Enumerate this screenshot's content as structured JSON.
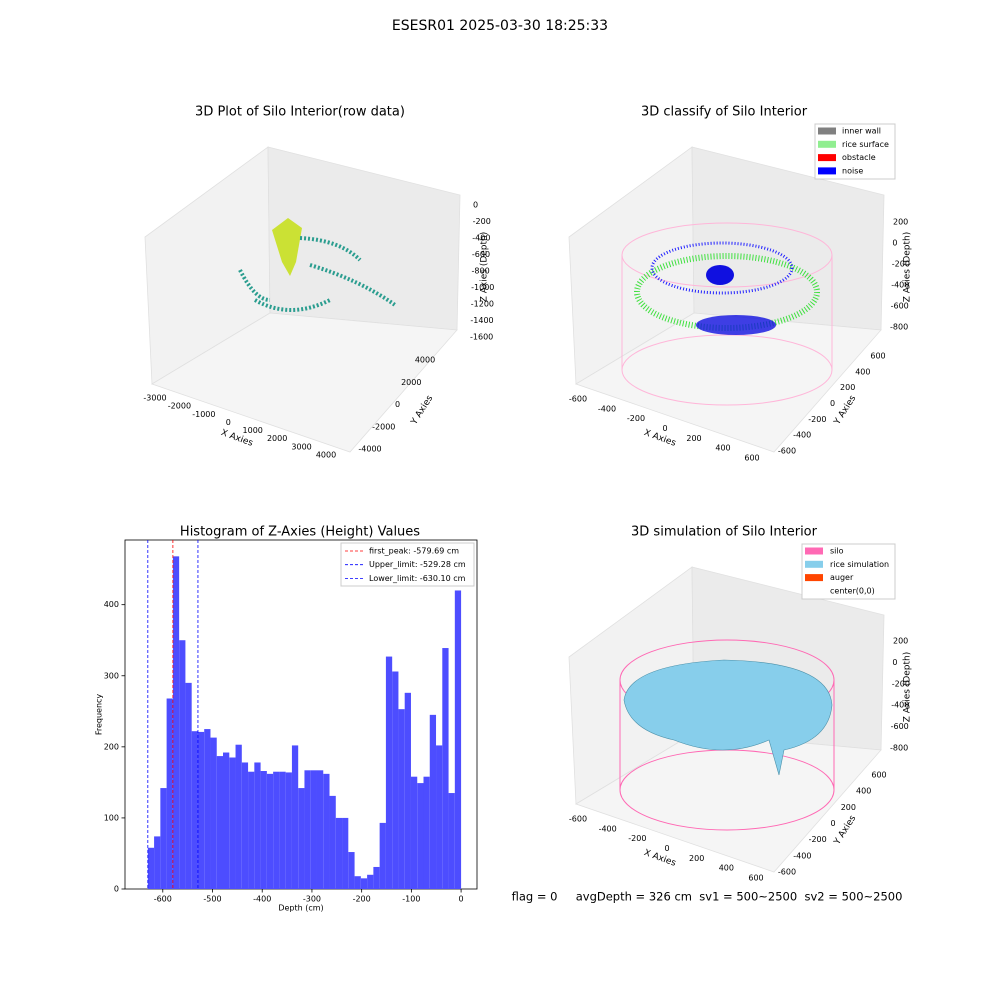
{
  "title": "ESESR01 2025-03-30 18:25:33",
  "footer": "flag = 0     avgDepth = 326 cm  sv1 = 500~2500  sv2 = 500~2500",
  "chart_data": [
    {
      "type": "scatter3d",
      "title": "3D Plot of Silo Interior(row data)",
      "x_label": "X Axies",
      "y_label": "Y Axies",
      "z_label": "Z Axies (Depth)",
      "xlim": [
        -3000,
        4000
      ],
      "xticks": [
        -3000,
        -2000,
        -1000,
        0,
        1000,
        2000,
        3000,
        4000
      ],
      "ylim": [
        -4000,
        4000
      ],
      "yticks": [
        -4000,
        -2000,
        0,
        2000,
        4000
      ],
      "zlim": [
        0,
        -1600
      ],
      "zticks": [
        0,
        -200,
        -400,
        -600,
        -800,
        -1000,
        -1200,
        -1400,
        -1600
      ]
    },
    {
      "type": "scatter3d",
      "title": "3D classify of Silo Interior",
      "x_label": "X Axies",
      "y_label": "Y Axies",
      "z_label": "Z Axies (Depth)",
      "xlim": [
        -600,
        600
      ],
      "xticks": [
        -600,
        -400,
        -200,
        0,
        200,
        400,
        600
      ],
      "ylim": [
        -600,
        600
      ],
      "yticks": [
        -600,
        -400,
        -200,
        0,
        200,
        400,
        600
      ],
      "zlim": [
        200,
        -800
      ],
      "zticks": [
        200,
        0,
        -200,
        -400,
        -600,
        -800
      ],
      "series": [
        {
          "name": "inner wall",
          "color": "#808080"
        },
        {
          "name": "rice surface",
          "color": "#90ee90"
        },
        {
          "name": "obstacle",
          "color": "#ff0000"
        },
        {
          "name": "noise",
          "color": "#0000ff"
        }
      ]
    },
    {
      "type": "histogram",
      "title": "Histogram of Z-Axies (Height) Values",
      "x_label": "Depth (cm)",
      "y_label": "Frequency",
      "color": "#4d4dff",
      "bins": [
        -630.1,
        -617.5,
        -604.9,
        -592.29,
        -579.69,
        -567.09,
        -554.49,
        -541.89,
        -529.28,
        -516.68,
        -504.08,
        -491.48,
        -478.88,
        -466.27,
        -453.67,
        -441.07,
        -428.47,
        -415.87,
        -403.26,
        -390.66,
        -378.06,
        -365.46,
        -352.86,
        -340.25,
        -327.65,
        -315.05,
        -302.45,
        -289.85,
        -277.24,
        -264.64,
        -252.04,
        -239.44,
        -226.84,
        -214.23,
        -201.63,
        -189.03,
        -176.43,
        -163.83,
        -151.22,
        -138.62,
        -126.02,
        -113.42,
        -100.82,
        -88.21,
        -75.61,
        -63.01,
        -50.41,
        -37.81,
        -25.2,
        -12.6,
        0
      ],
      "values": [
        58,
        74,
        142,
        268,
        468,
        350,
        290,
        222,
        221,
        225,
        213,
        187,
        192,
        185,
        203,
        178,
        165,
        178,
        166,
        162,
        165,
        165,
        164,
        202,
        142,
        167,
        167,
        167,
        162,
        131,
        100,
        100,
        52,
        18,
        15,
        20,
        31,
        93,
        327,
        306,
        253,
        276,
        158,
        149,
        158,
        245,
        202,
        339,
        135,
        420
      ],
      "xlim": [
        -676,
        32
      ],
      "xticks": [
        -600,
        -500,
        -400,
        -300,
        -200,
        -100,
        0
      ],
      "ylim": [
        0,
        491
      ],
      "yticks": [
        0,
        100,
        200,
        300,
        400
      ],
      "vlines": [
        {
          "name": "first_peak: -579.69 cm",
          "value": -579.69,
          "color": "#ff0000"
        },
        {
          "name": "Upper_limit: -529.28 cm",
          "value": -529.28,
          "color": "#0000ff"
        },
        {
          "name": "Lower_limit: -630.10 cm",
          "value": -630.1,
          "color": "#0000ff"
        }
      ]
    },
    {
      "type": "surface3d",
      "title": "3D simulation of Silo Interior",
      "x_label": "X Axies",
      "y_label": "Y Axies",
      "z_label": "Z Axies (Depth)",
      "xlim": [
        -600,
        600
      ],
      "xticks": [
        -600,
        -400,
        -200,
        0,
        200,
        400,
        600
      ],
      "ylim": [
        -600,
        600
      ],
      "yticks": [
        -600,
        -400,
        -200,
        0,
        200,
        400,
        600
      ],
      "zlim": [
        200,
        -800
      ],
      "zticks": [
        200,
        0,
        -200,
        -400,
        -600,
        -800
      ],
      "series": [
        {
          "name": "silo",
          "color": "#ff69b4"
        },
        {
          "name": "rice simulation",
          "color": "#87ceeb"
        },
        {
          "name": "auger",
          "color": "#ff4500"
        },
        {
          "name": "center(0,0)",
          "color": "#ffffff"
        }
      ]
    }
  ]
}
